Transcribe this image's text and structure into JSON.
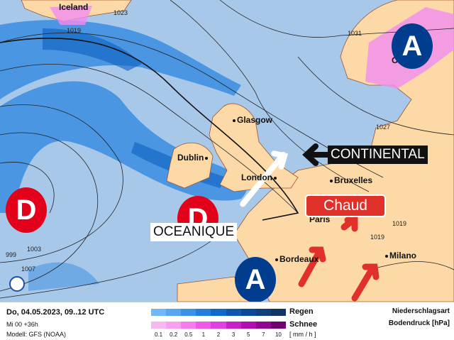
{
  "map": {
    "cities": [
      {
        "name": "Iceland"
      },
      {
        "name": "Oslo"
      },
      {
        "name": "Glasgow"
      },
      {
        "name": "Dublin"
      },
      {
        "name": "London"
      },
      {
        "name": "Bruxelles"
      },
      {
        "name": "Paris"
      },
      {
        "name": "Bordeaux"
      },
      {
        "name": "Milano"
      }
    ],
    "isobars": [
      "1023",
      "1019",
      "1031",
      "1027",
      "999",
      "1003",
      "1007",
      "1019",
      "1019"
    ],
    "pressure_systems": {
      "low": "D",
      "high": "A"
    },
    "annotations": {
      "continental": "CONTINENTAL",
      "oceanique": "OCEANIQUE",
      "chaud": "Chaud"
    },
    "colors": {
      "sea": "#a8c8ea",
      "land": "#fcd9a6",
      "low": "#e2001a",
      "high": "#003d8f",
      "chaud": "#e0302a",
      "rain": "#2b86e0",
      "snow": "#f08cf0"
    }
  },
  "legend": {
    "date": "Do, 04.05.2023, 09..12 UTC",
    "run": "Mi 00 +36h",
    "model": "Modell: GFS (NOAA)",
    "rain_label": "Regen",
    "snow_label": "Schnee",
    "unit": "[ mm / h ]",
    "ticks": [
      "0.1",
      "0.2",
      "0.5",
      "1",
      "2",
      "3",
      "5",
      "7",
      "10"
    ],
    "title1": "Niederschlagsart",
    "title2": "Bodendruck [hPa]",
    "rain_colors": [
      "#70b8f8",
      "#56a6f0",
      "#3a92e6",
      "#237edb",
      "#1068c8",
      "#0e58b0",
      "#0a4a98",
      "#0f4080",
      "#103560"
    ],
    "snow_colors": [
      "#f8b8f0",
      "#f8a0f0",
      "#f47cec",
      "#ee5ae6",
      "#e040e0",
      "#c820c8",
      "#b010b0",
      "#900890",
      "#700070"
    ]
  }
}
